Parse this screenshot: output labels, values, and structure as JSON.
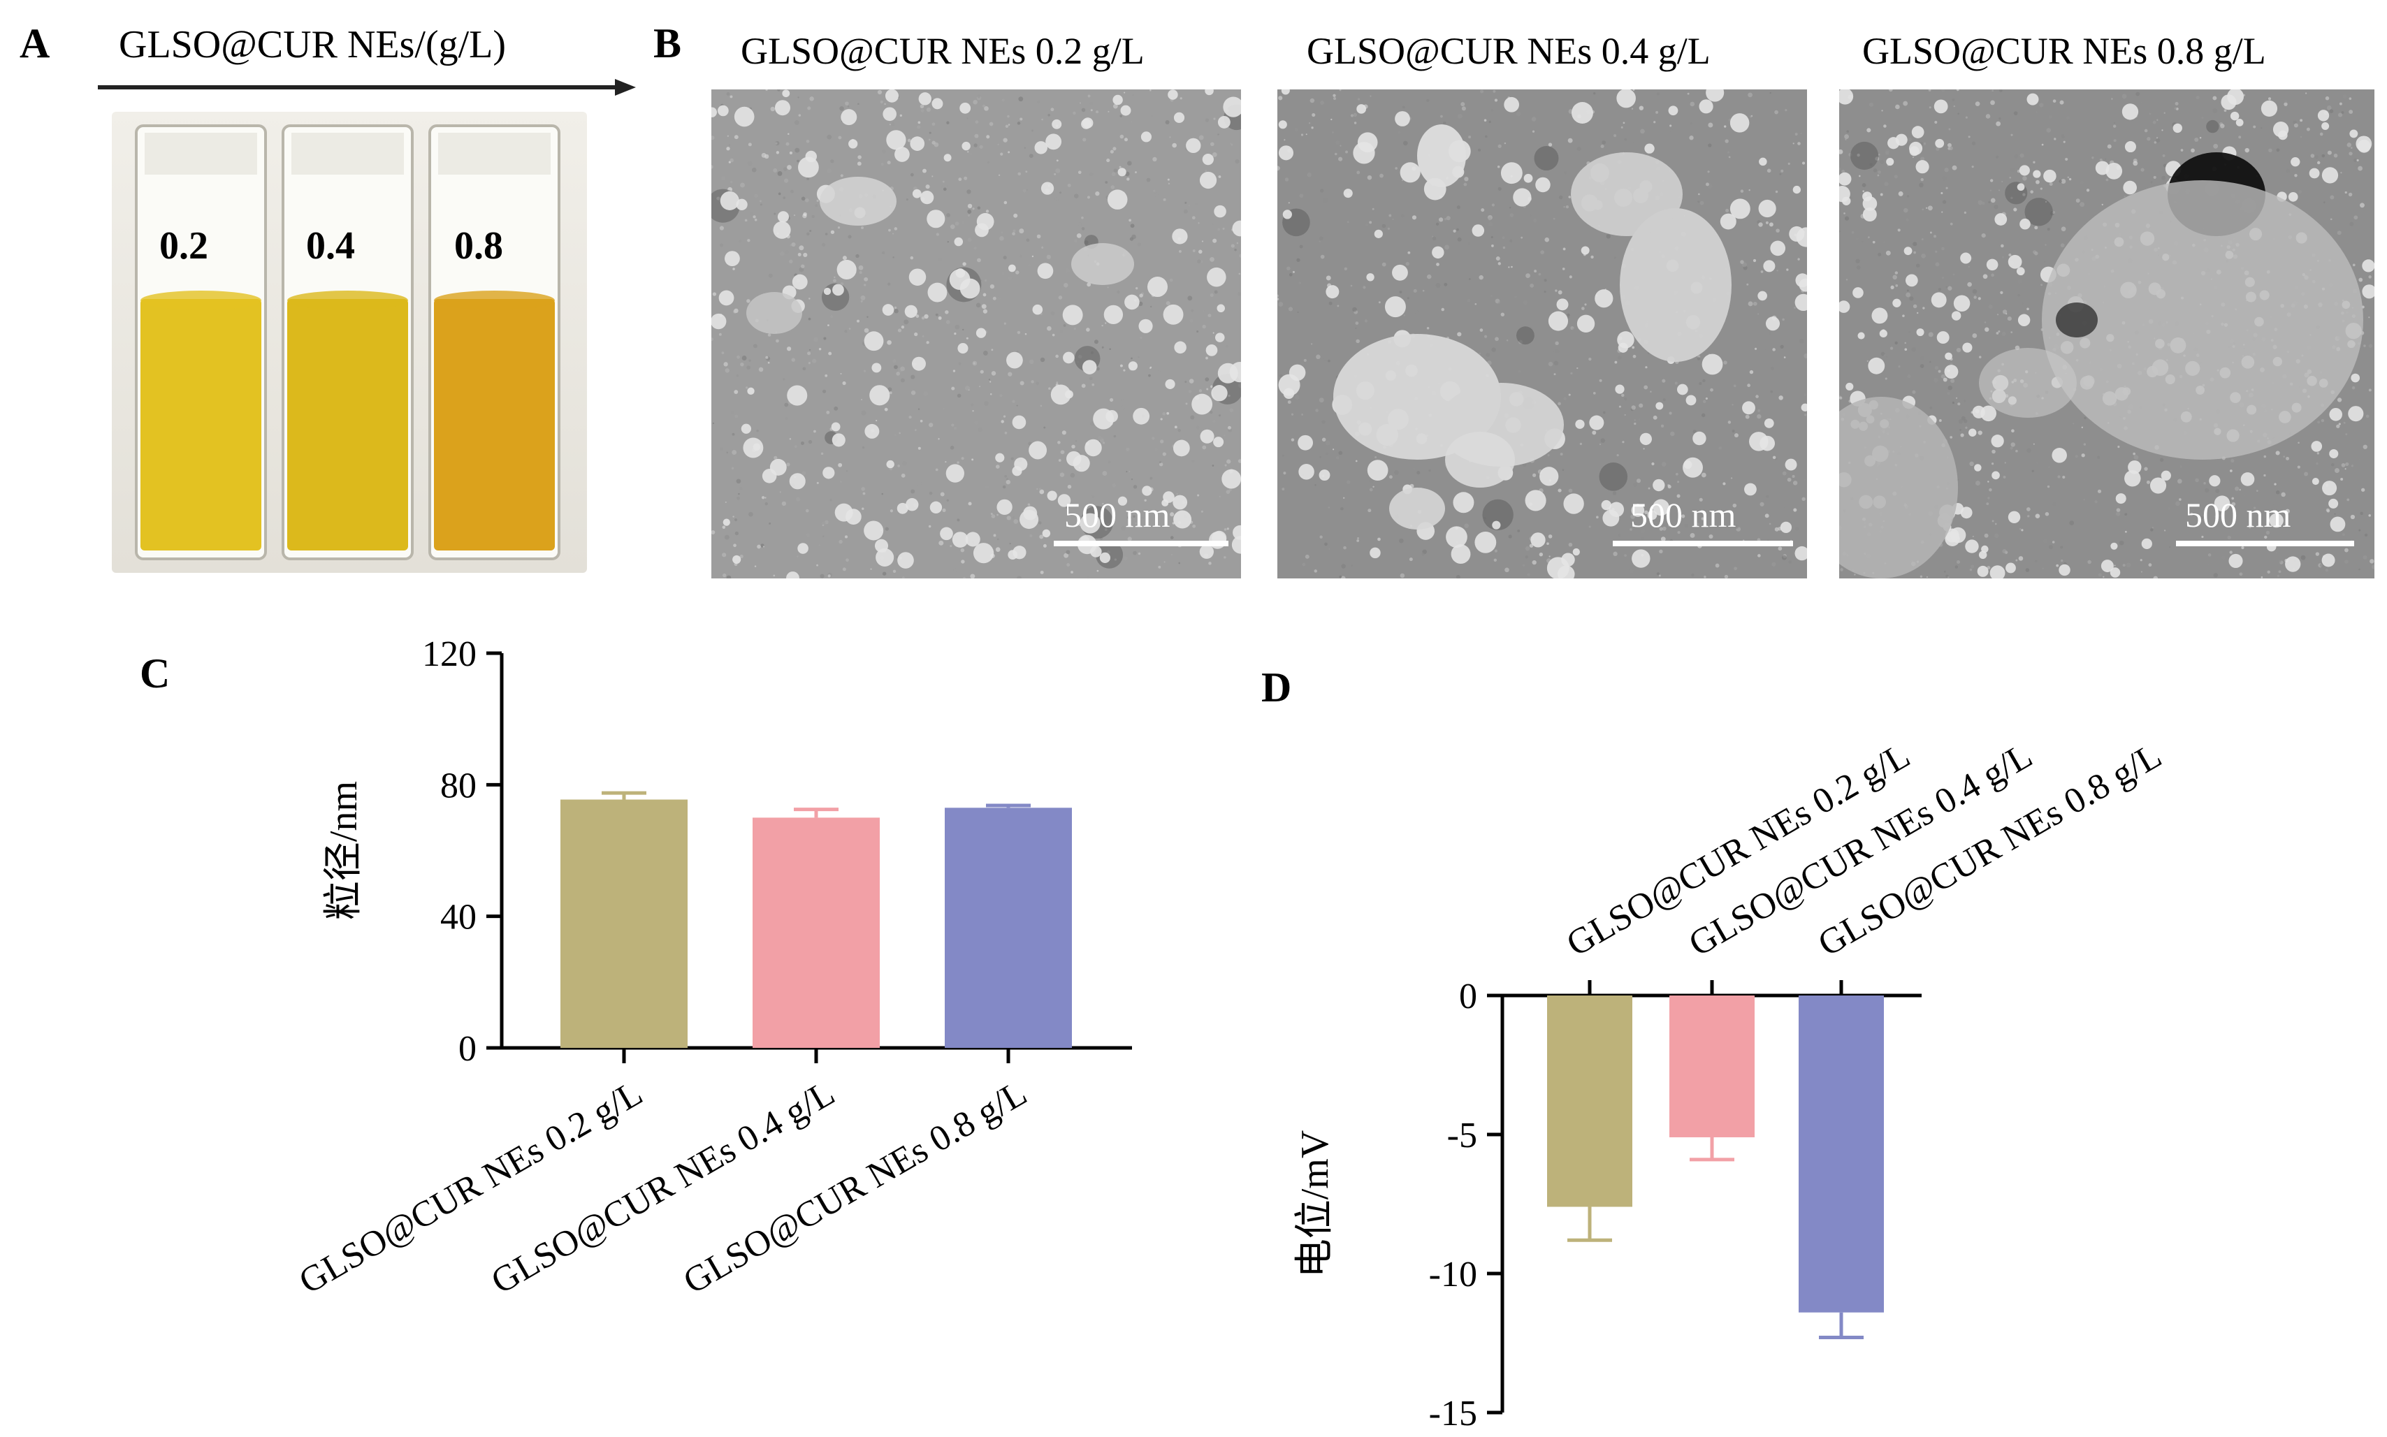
{
  "panels": {
    "a": {
      "letter": "A",
      "arrow_label": "GLSO@CUR NEs/(g/L)",
      "cuvettes": [
        {
          "label": "0.2",
          "liquid_color": "#e3c222"
        },
        {
          "label": "0.4",
          "liquid_color": "#dcb91c"
        },
        {
          "label": "0.8",
          "liquid_color": "#dba21c"
        }
      ]
    },
    "b": {
      "letter": "B",
      "images": [
        {
          "title": "GLSO@CUR NEs 0.2 g/L",
          "scale": "500 nm"
        },
        {
          "title": "GLSO@CUR NEs 0.4 g/L",
          "scale": "500 nm"
        },
        {
          "title": "GLSO@CUR NEs 0.8 g/L",
          "scale": "500 nm"
        }
      ]
    },
    "c": {
      "letter": "C"
    },
    "d": {
      "letter": "D"
    }
  },
  "chart_data": [
    {
      "type": "bar",
      "panel": "C",
      "categories": [
        "GLSO@CUR NEs 0.2 g/L",
        "GLSO@CUR NEs 0.4 g/L",
        "GLSO@CUR NEs 0.8 g/L"
      ],
      "values": [
        75.5,
        70.0,
        73.0
      ],
      "errors": [
        2.0,
        2.5,
        0.7
      ],
      "colors": [
        "#bdb27a",
        "#f2a0a6",
        "#8389c6"
      ],
      "ylabel": "粒径/nm",
      "ylim": [
        0,
        120
      ],
      "yticks": [
        "0",
        "40",
        "80",
        "120"
      ],
      "grid": false
    },
    {
      "type": "bar",
      "panel": "D",
      "categories": [
        "GLSO@CUR NEs 0.2 g/L",
        "GLSO@CUR NEs 0.4 g/L",
        "GLSO@CUR NEs 0.8 g/L"
      ],
      "values": [
        -7.6,
        -5.1,
        -11.4
      ],
      "errors": [
        1.2,
        0.8,
        0.9
      ],
      "colors": [
        "#bdb27a",
        "#f2a0a6",
        "#8389c6"
      ],
      "ylabel": "电位/mV",
      "ylim": [
        -15,
        0
      ],
      "yticks": [
        "0",
        "-5",
        "-10",
        "-15"
      ],
      "grid": false
    }
  ]
}
